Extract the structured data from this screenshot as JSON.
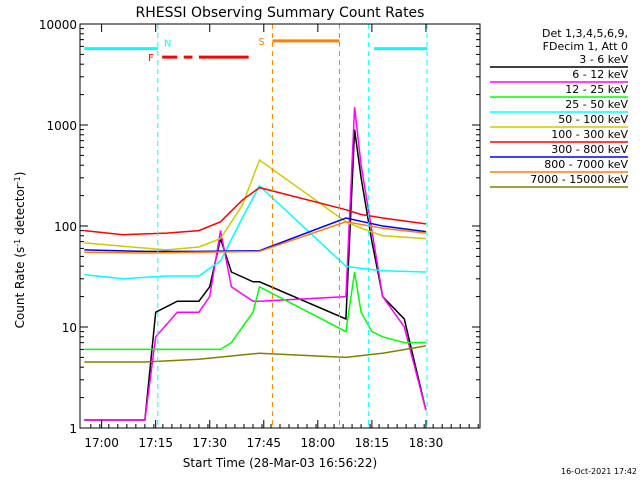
{
  "chart_data": {
    "type": "line",
    "title": "RHESSI Observing Summary Count Rates",
    "xlabel": "Start Time (28-Mar-03 16:56:22)",
    "ylabel_main": "Count Rate (s",
    "ylabel_exp1": "-1",
    "ylabel_mid": " detector",
    "ylabel_exp2": "-1",
    "ylabel_end": ")",
    "x_range_min": [
      16.9,
      18.75
    ],
    "y_log": true,
    "y_range": [
      1,
      10000
    ],
    "x_ticks": [
      {
        "value": 17.0,
        "label": "17:00"
      },
      {
        "value": 17.25,
        "label": "17:15"
      },
      {
        "value": 17.5,
        "label": "17:30"
      },
      {
        "value": 17.75,
        "label": "17:45"
      },
      {
        "value": 18.0,
        "label": "18:00"
      },
      {
        "value": 18.25,
        "label": "18:15"
      },
      {
        "value": 18.5,
        "label": "18:30"
      }
    ],
    "y_ticks": [
      {
        "value": 1,
        "label": "1"
      },
      {
        "value": 10,
        "label": "10"
      },
      {
        "value": 100,
        "label": "100"
      },
      {
        "value": 1000,
        "label": "1000"
      },
      {
        "value": 10000,
        "label": "10000"
      }
    ],
    "legend_header": [
      "Det 1,3,4,5,6,9,",
      "FDecim 1, Att 0"
    ],
    "series": [
      {
        "name": "3 - 6 keV",
        "color": "#000000",
        "x": [
          16.92,
          17.2,
          17.25,
          17.35,
          17.45,
          17.5,
          17.55,
          17.6,
          17.7,
          17.73,
          18.13,
          18.17,
          18.2,
          18.25,
          18.3,
          18.4,
          18.5
        ],
        "y": [
          1.2,
          1.2,
          14,
          18,
          18,
          25,
          75,
          35,
          28,
          28,
          12,
          900,
          300,
          70,
          20,
          12,
          1.5
        ]
      },
      {
        "name": "6 - 12 keV",
        "color": "#ff00ff",
        "x": [
          16.92,
          17.2,
          17.25,
          17.35,
          17.45,
          17.5,
          17.55,
          17.6,
          17.7,
          17.73,
          18.13,
          18.17,
          18.2,
          18.25,
          18.3,
          18.4,
          18.5
        ],
        "y": [
          1.2,
          1.2,
          8,
          14,
          14,
          20,
          90,
          25,
          18,
          18,
          20,
          1500,
          400,
          90,
          20,
          10,
          1.5
        ]
      },
      {
        "name": "12 - 25 keV",
        "color": "#00ff00",
        "x": [
          16.92,
          17.2,
          17.25,
          17.35,
          17.45,
          17.5,
          17.55,
          17.6,
          17.7,
          17.73,
          18.13,
          18.17,
          18.2,
          18.25,
          18.3,
          18.4,
          18.5
        ],
        "y": [
          6,
          6,
          6,
          6,
          6,
          6,
          6,
          7,
          14,
          25,
          9,
          35,
          14,
          9,
          8,
          7,
          7
        ]
      },
      {
        "name": "25 - 50 keV",
        "color": "#00ffff",
        "x": [
          16.92,
          17.1,
          17.3,
          17.45,
          17.55,
          17.65,
          17.73,
          18.13,
          18.2,
          18.3,
          18.5
        ],
        "y": [
          33,
          30,
          32,
          32,
          45,
          120,
          250,
          40,
          38,
          36,
          35
        ]
      },
      {
        "name": "50 - 100 keV",
        "color": "#cccc00",
        "x": [
          16.92,
          17.1,
          17.3,
          17.45,
          17.55,
          17.65,
          17.73,
          18.13,
          18.2,
          18.3,
          18.5
        ],
        "y": [
          68,
          63,
          58,
          62,
          75,
          160,
          450,
          110,
          95,
          80,
          75
        ]
      },
      {
        "name": "100 - 300 keV",
        "color": "#ff0000",
        "x": [
          16.92,
          17.1,
          17.3,
          17.45,
          17.55,
          17.65,
          17.73,
          18.13,
          18.2,
          18.3,
          18.5
        ],
        "y": [
          90,
          82,
          85,
          90,
          110,
          180,
          240,
          145,
          130,
          120,
          105
        ]
      },
      {
        "name": "300 - 800 keV",
        "color": "#0000ff",
        "x": [
          16.92,
          17.2,
          17.45,
          17.73,
          18.13,
          18.3,
          18.5
        ],
        "y": [
          58,
          56,
          56,
          57,
          120,
          100,
          88
        ]
      },
      {
        "name": "800 - 7000 keV",
        "color": "#ff8000",
        "x": [
          16.92,
          17.2,
          17.45,
          17.73,
          18.13,
          18.3,
          18.5
        ],
        "y": [
          55,
          54,
          55,
          56,
          110,
          95,
          85
        ]
      },
      {
        "name": "7000 - 15000 keV",
        "color": "#808000",
        "x": [
          16.92,
          17.2,
          17.45,
          17.73,
          18.13,
          18.3,
          18.5
        ],
        "y": [
          4.5,
          4.5,
          4.8,
          5.5,
          5,
          5.5,
          6.5
        ]
      }
    ],
    "markers": {
      "N_label": "N",
      "F_label": "F",
      "S_label": "S",
      "night_x": [
        17.26,
        18.235,
        18.505
      ],
      "saa_x": [
        17.79,
        18.1
      ],
      "flare_segments": [
        [
          17.28,
          17.35
        ],
        [
          17.38,
          17.42
        ],
        [
          17.45,
          17.68
        ]
      ],
      "saa_bar": [
        17.79,
        18.1
      ],
      "night_bar_left": [
        16.92,
        17.26
      ],
      "night_bar_right": [
        18.26,
        18.505
      ],
      "colors": {
        "night": "#00ffff",
        "flare": "#ff0000",
        "saa": "#ff8000"
      },
      "level_night": 5700,
      "level_flare": 4700,
      "level_saa": 6800
    }
  },
  "footer": {
    "date": "16-Oct-2021 17:42"
  }
}
